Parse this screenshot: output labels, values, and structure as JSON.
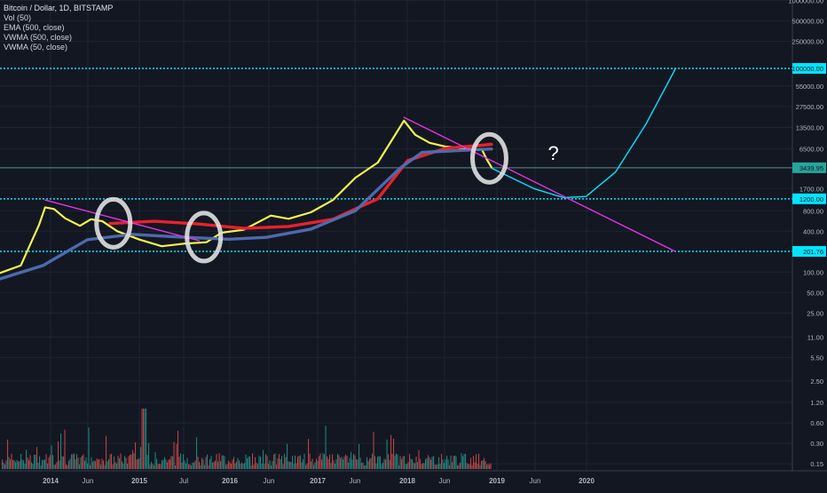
{
  "chart_data": {
    "type": "line",
    "title": "Bitcoin / Dollar, 1D, BITSTAMP",
    "indicators": [
      "Vol (50)",
      "EMA (500, close)",
      "VWMA (500, close)",
      "VWMA (50, close)"
    ],
    "y_scale": "log",
    "y_ticks": [
      "1000000.00",
      "500000.00",
      "250000.00",
      "55000.00",
      "27500.00",
      "13500.00",
      "6500.00",
      "1700.00",
      "800.00",
      "400.00",
      "100.00",
      "50.00",
      "25.00",
      "11.00",
      "5.50",
      "2.50",
      "1.20",
      "0.60",
      "0.30",
      "0.15"
    ],
    "x_ticks": [
      "2014",
      "Jun",
      "2015",
      "Jul",
      "2016",
      "Jun",
      "2017",
      "Jun",
      "2018",
      "Jun",
      "2019",
      "Jun",
      "2020"
    ],
    "price_labels": [
      {
        "value": 100000.0,
        "text": "100000.00",
        "color": "#00e5ff",
        "line": "dotted"
      },
      {
        "value": 3439.95,
        "text": "3439.95",
        "color": "#26a69a",
        "line": "solid"
      },
      {
        "value": 1200.0,
        "text": "1200.00",
        "color": "#00e5ff",
        "line": "dotted"
      },
      {
        "value": 201.76,
        "text": "201.76",
        "color": "#00e5ff",
        "line": "dotted"
      }
    ],
    "series": [
      {
        "color": "#f5f549",
        "style": "price_smoothed",
        "points": [
          [
            "2013-06-01",
            95
          ],
          [
            "2013-09-01",
            125
          ],
          [
            "2013-11-15",
            500
          ],
          [
            "2013-12-10",
            900
          ],
          [
            "2014-01-15",
            850
          ],
          [
            "2014-03-01",
            620
          ],
          [
            "2014-05-01",
            480
          ],
          [
            "2014-06-15",
            600
          ],
          [
            "2014-08-01",
            560
          ],
          [
            "2014-10-01",
            400
          ],
          [
            "2015-01-01",
            300
          ],
          [
            "2015-04-01",
            240
          ],
          [
            "2015-07-01",
            262
          ],
          [
            "2015-10-01",
            275
          ],
          [
            "2015-12-01",
            380
          ],
          [
            "2016-03-01",
            420
          ],
          [
            "2016-06-20",
            680
          ],
          [
            "2016-09-01",
            610
          ],
          [
            "2016-12-01",
            760
          ],
          [
            "2017-03-01",
            1150
          ],
          [
            "2017-06-01",
            2450
          ],
          [
            "2017-09-01",
            4100
          ],
          [
            "2017-12-17",
            17000
          ],
          [
            "2018-02-01",
            10500
          ],
          [
            "2018-04-01",
            8000
          ],
          [
            "2018-06-01",
            7100
          ],
          [
            "2018-09-01",
            6500
          ],
          [
            "2018-11-01",
            6350
          ],
          [
            "2018-11-20",
            4600
          ],
          [
            "2018-12-10",
            3500
          ]
        ]
      },
      {
        "color": "#e8212c",
        "style": "ema_500",
        "points": [
          [
            "2014-09-01",
            520
          ],
          [
            "2015-03-01",
            560
          ],
          [
            "2015-09-01",
            510
          ],
          [
            "2016-03-01",
            440
          ],
          [
            "2016-09-01",
            470
          ],
          [
            "2017-03-01",
            600
          ],
          [
            "2017-09-01",
            1200
          ],
          [
            "2018-01-01",
            4400
          ],
          [
            "2018-06-01",
            6600
          ],
          [
            "2018-12-10",
            7600
          ]
        ]
      },
      {
        "color": "#4f6fb4",
        "style": "vwma_500",
        "points": [
          [
            "2013-06-01",
            78
          ],
          [
            "2013-12-01",
            125
          ],
          [
            "2014-06-01",
            300
          ],
          [
            "2014-12-01",
            360
          ],
          [
            "2015-06-01",
            330
          ],
          [
            "2016-01-01",
            305
          ],
          [
            "2016-06-01",
            325
          ],
          [
            "2016-12-01",
            430
          ],
          [
            "2017-06-01",
            800
          ],
          [
            "2017-12-01",
            3400
          ],
          [
            "2018-03-01",
            5800
          ],
          [
            "2018-12-10",
            6500
          ]
        ]
      },
      {
        "color": "#00e5ff",
        "style": "projection",
        "points": [
          [
            "2018-12-10",
            3400
          ],
          [
            "2019-06-01",
            1700
          ],
          [
            "2019-10-01",
            1250
          ],
          [
            "2020-01-01",
            1300
          ],
          [
            "2020-05-01",
            3000
          ],
          [
            "2020-09-01",
            15000
          ],
          [
            "2021-01-01",
            100000
          ]
        ]
      },
      {
        "color": "#e535e5",
        "style": "trendline",
        "points": [
          [
            "2013-12-10",
            1150
          ],
          [
            "2015-09-01",
            290
          ]
        ]
      },
      {
        "color": "#e535e5",
        "style": "trendline",
        "points": [
          [
            "2017-12-17",
            19000
          ],
          [
            "2021-01-01",
            200
          ]
        ]
      }
    ],
    "highlight_circles": [
      "2014-09-15",
      "2015-09-20",
      "2018-12-01"
    ],
    "annotation": "?",
    "volume": {
      "color_up": "#26a69a",
      "color_down": "#ef5350",
      "peak_date": "2015-01-15"
    }
  }
}
